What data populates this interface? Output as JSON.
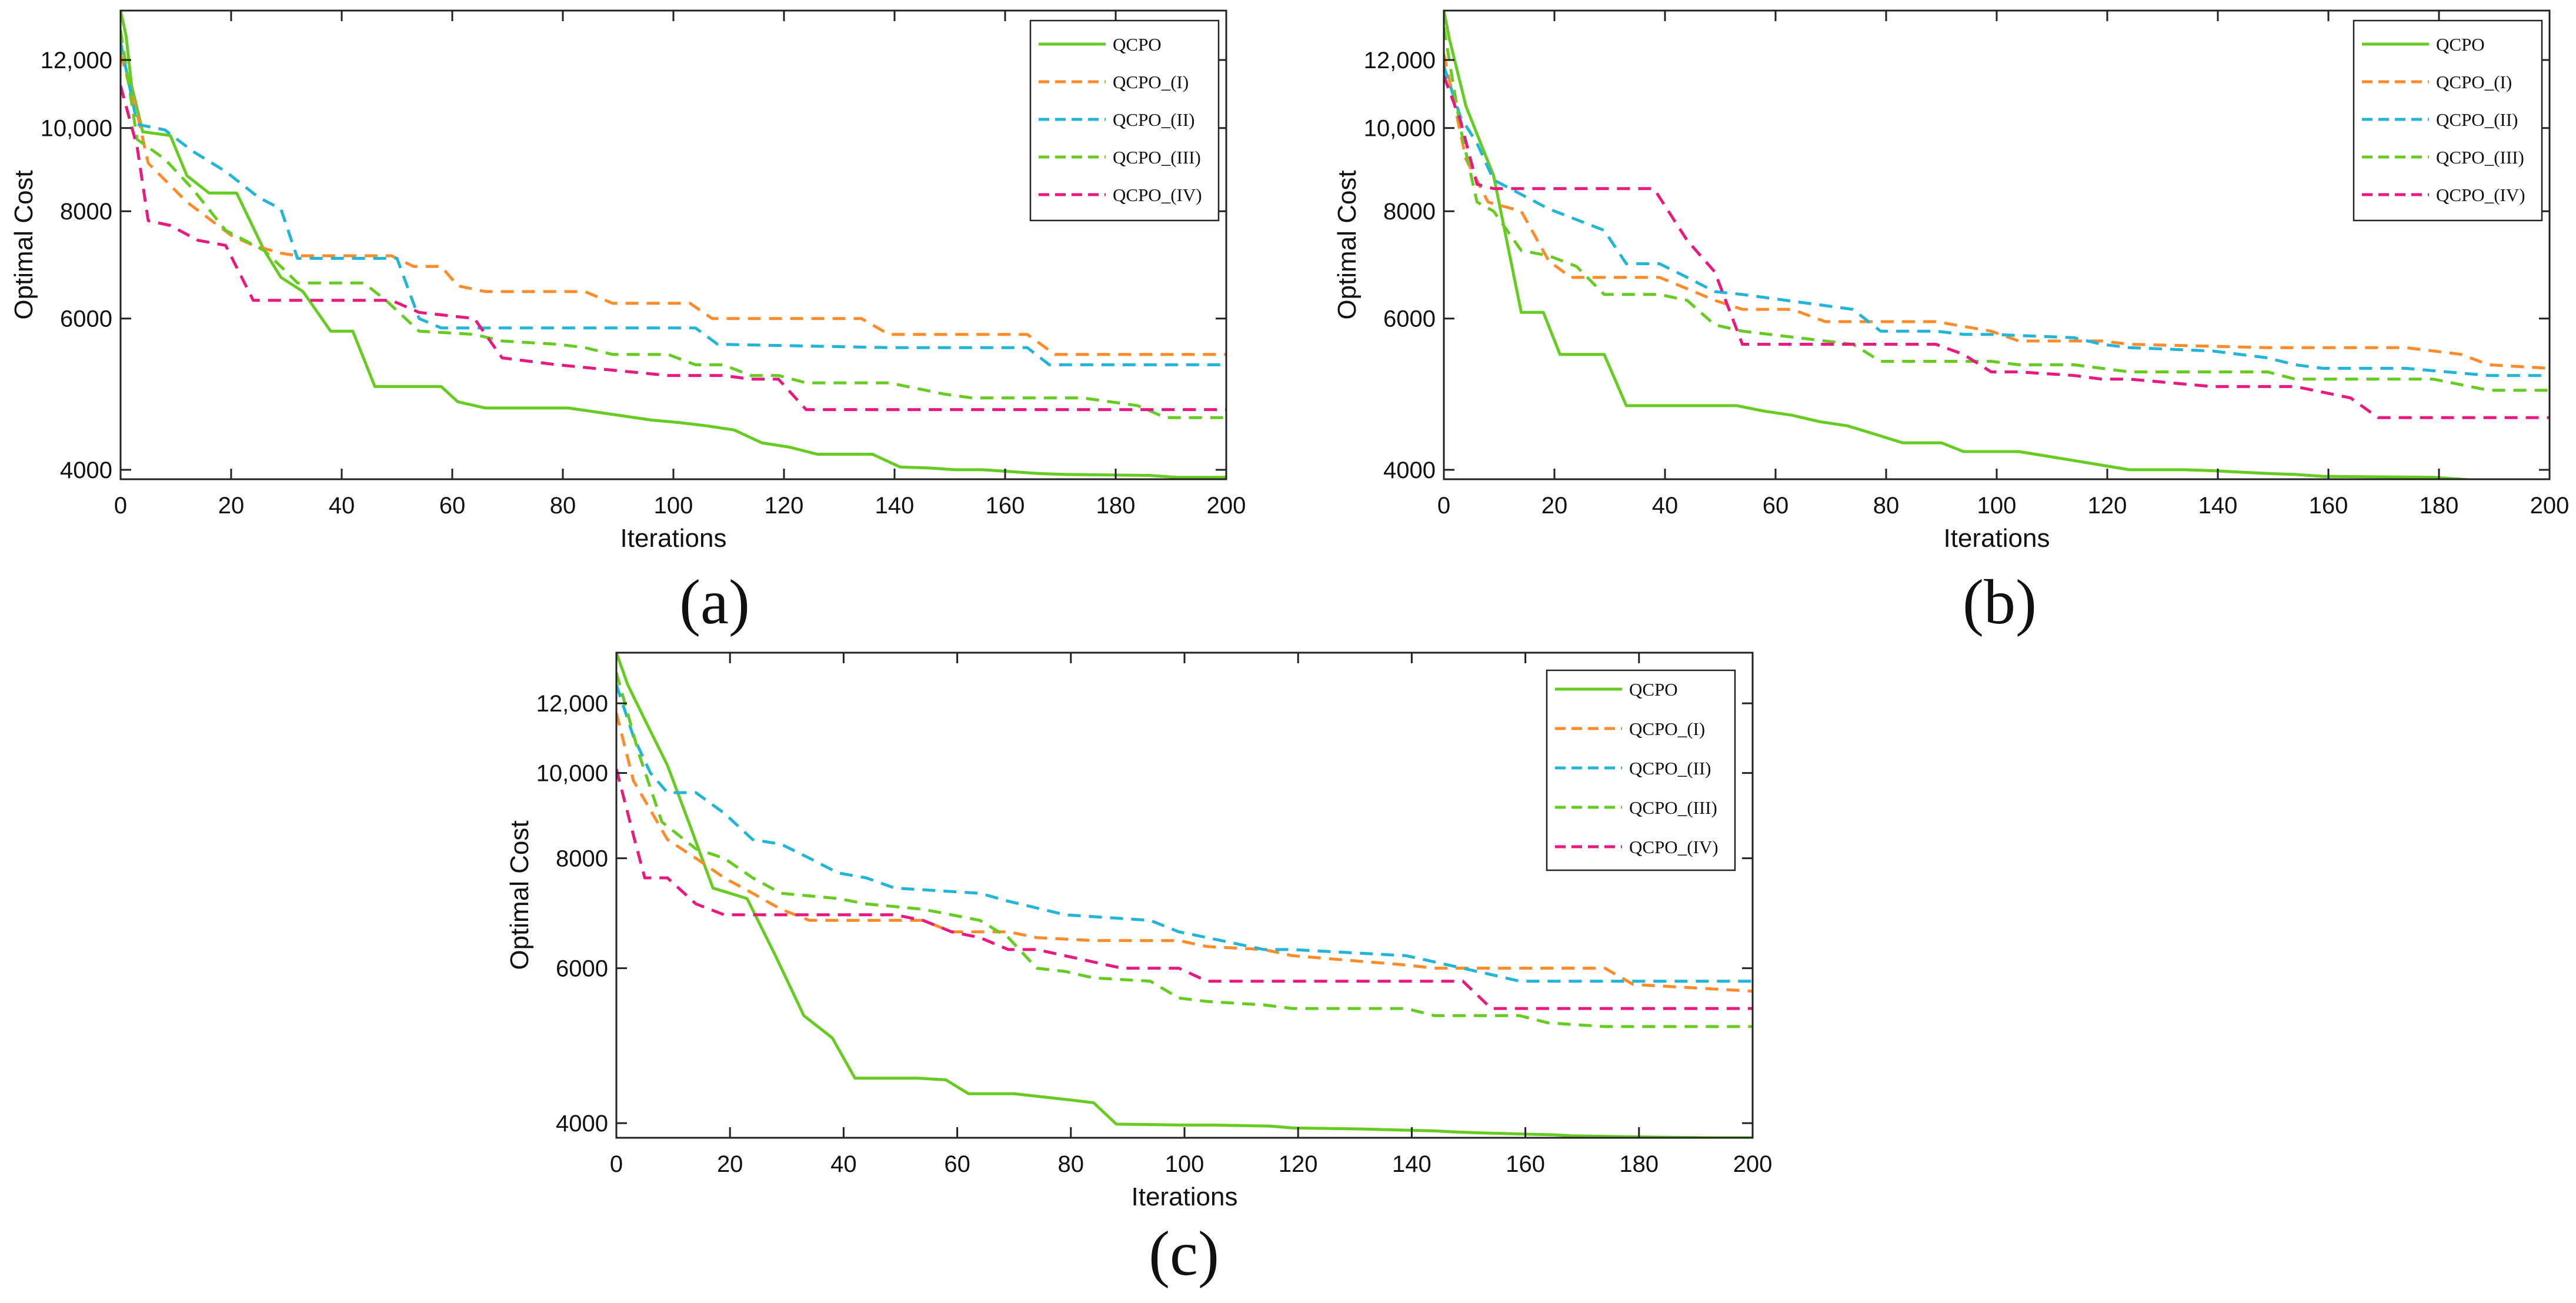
{
  "chart_data": [
    {
      "type": "line",
      "caption": "(a)",
      "xlabel": "Iterations",
      "ylabel": "Optimal Cost",
      "xlim": [
        0,
        200
      ],
      "ylim": [
        3900,
        13700
      ],
      "yscale": "log",
      "xticks": [
        0,
        20,
        40,
        60,
        80,
        100,
        120,
        140,
        160,
        180,
        200
      ],
      "yticks": [
        4000,
        6000,
        8000,
        10000,
        12000
      ],
      "ytick_labels": [
        "4000",
        "6000",
        "8000",
        "10,000",
        "12,000"
      ],
      "grid": false,
      "legend_position": "top-right",
      "series": [
        {
          "name": "QCPO",
          "color": "#66cc22",
          "dash": "solid",
          "x": [
            0,
            1,
            2,
            4,
            9,
            12,
            16,
            21,
            26,
            29,
            33,
            38,
            42,
            46,
            49,
            58,
            61,
            66,
            71,
            81,
            86,
            91,
            96,
            101,
            106,
            111,
            116,
            121,
            126,
            131,
            136,
            141,
            146,
            151,
            156,
            166,
            171,
            186,
            191,
            200
          ],
          "y": [
            13700,
            12800,
            11200,
            9900,
            9800,
            8800,
            8400,
            8400,
            7200,
            6700,
            6450,
            5800,
            5800,
            5000,
            5000,
            5000,
            4800,
            4720,
            4720,
            4720,
            4670,
            4620,
            4570,
            4540,
            4500,
            4450,
            4300,
            4250,
            4170,
            4170,
            4170,
            4030,
            4020,
            4000,
            4000,
            3960,
            3950,
            3940,
            3920,
            3920
          ]
        },
        {
          "name": "QCPO_(I)",
          "color": "#ff8c2a",
          "dash": "dashed",
          "x": [
            0,
            3,
            5,
            12,
            20,
            24,
            29,
            32,
            49,
            53,
            58,
            61,
            66,
            84,
            89,
            103,
            107,
            119,
            134,
            139,
            154,
            164,
            169,
            200
          ],
          "y": [
            12200,
            10400,
            9100,
            8200,
            7500,
            7300,
            7150,
            7100,
            7100,
            6900,
            6900,
            6550,
            6450,
            6450,
            6250,
            6250,
            6000,
            6000,
            6000,
            5750,
            5750,
            5750,
            5450,
            5450
          ]
        },
        {
          "name": "QCPO_(II)",
          "color": "#22b5d8",
          "dash": "dashed",
          "x": [
            0,
            3,
            8,
            13,
            19,
            25,
            29,
            32,
            50,
            54,
            58,
            64,
            99,
            104,
            108,
            139,
            159,
            164,
            168,
            200
          ],
          "y": [
            12600,
            10100,
            9950,
            9400,
            8900,
            8300,
            8050,
            7050,
            7050,
            6000,
            5850,
            5850,
            5850,
            5850,
            5600,
            5550,
            5550,
            5550,
            5300,
            5300
          ]
        },
        {
          "name": "QCPO_(III)",
          "color": "#66cc22",
          "dash": "dashed",
          "x": [
            0,
            3,
            8,
            13,
            19,
            26,
            30,
            32,
            44,
            48,
            54,
            64,
            69,
            79,
            84,
            89,
            99,
            104,
            109,
            114,
            119,
            124,
            139,
            149,
            154,
            164,
            174,
            184,
            189,
            200
          ],
          "y": [
            13000,
            9700,
            9200,
            8500,
            7600,
            7200,
            6800,
            6600,
            6600,
            6300,
            5800,
            5750,
            5650,
            5600,
            5550,
            5450,
            5450,
            5300,
            5300,
            5150,
            5150,
            5050,
            5050,
            4900,
            4850,
            4850,
            4850,
            4750,
            4600,
            4600
          ]
        },
        {
          "name": "QCPO_(IV)",
          "color": "#e8197f",
          "dash": "dashed",
          "x": [
            0,
            3,
            5,
            9,
            14,
            19,
            24,
            29,
            49,
            54,
            64,
            69,
            79,
            99,
            109,
            114,
            119,
            124,
            200
          ],
          "y": [
            11200,
            9500,
            7800,
            7700,
            7400,
            7300,
            6300,
            6300,
            6300,
            6100,
            6000,
            5400,
            5300,
            5150,
            5150,
            5100,
            5100,
            4700,
            4700
          ]
        }
      ]
    },
    {
      "type": "line",
      "caption": "(b)",
      "xlabel": "Iterations",
      "ylabel": "Optimal Cost",
      "xlim": [
        0,
        200
      ],
      "ylim": [
        3900,
        13700
      ],
      "yscale": "log",
      "xticks": [
        0,
        20,
        40,
        60,
        80,
        100,
        120,
        140,
        160,
        180,
        200
      ],
      "yticks": [
        4000,
        6000,
        8000,
        10000,
        12000
      ],
      "ytick_labels": [
        "4000",
        "6000",
        "8000",
        "10,000",
        "12,000"
      ],
      "grid": false,
      "legend_position": "top-right",
      "series": [
        {
          "name": "QCPO",
          "color": "#66cc22",
          "dash": "solid",
          "x": [
            0,
            1,
            4,
            9,
            14,
            18,
            21,
            29,
            33,
            53,
            58,
            63,
            68,
            73,
            78,
            83,
            90,
            94,
            99,
            104,
            109,
            114,
            119,
            124,
            134,
            139,
            149,
            154,
            159,
            179,
            189,
            200
          ],
          "y": [
            13700,
            12700,
            10600,
            8800,
            6100,
            6100,
            5450,
            5450,
            4750,
            4750,
            4680,
            4630,
            4550,
            4500,
            4400,
            4300,
            4300,
            4200,
            4200,
            4200,
            4150,
            4100,
            4050,
            4000,
            4000,
            3990,
            3960,
            3950,
            3930,
            3920,
            3880,
            3860
          ]
        },
        {
          "name": "QCPO_(I)",
          "color": "#ff8c2a",
          "dash": "dashed",
          "x": [
            0,
            4,
            8,
            14,
            19,
            23,
            39,
            44,
            49,
            54,
            63,
            69,
            89,
            99,
            104,
            119,
            124,
            149,
            154,
            174,
            184,
            189,
            200
          ],
          "y": [
            12200,
            9200,
            8200,
            8000,
            7000,
            6700,
            6700,
            6500,
            6300,
            6150,
            6150,
            5950,
            5950,
            5800,
            5650,
            5650,
            5600,
            5550,
            5550,
            5550,
            5450,
            5300,
            5250
          ]
        },
        {
          "name": "QCPO_(II)",
          "color": "#22b5d8",
          "dash": "dashed",
          "x": [
            0,
            3,
            6,
            9,
            19,
            29,
            33,
            39,
            44,
            49,
            54,
            74,
            79,
            89,
            94,
            99,
            114,
            119,
            124,
            139,
            149,
            154,
            159,
            174,
            189,
            200
          ],
          "y": [
            11800,
            10300,
            9600,
            8700,
            8050,
            7600,
            6950,
            6950,
            6700,
            6450,
            6400,
            6150,
            5800,
            5800,
            5750,
            5750,
            5700,
            5600,
            5550,
            5500,
            5400,
            5300,
            5250,
            5250,
            5150,
            5150
          ]
        },
        {
          "name": "QCPO_(III)",
          "color": "#66cc22",
          "dash": "dashed",
          "x": [
            0,
            3,
            6,
            9,
            14,
            19,
            24,
            29,
            39,
            44,
            49,
            54,
            74,
            79,
            99,
            104,
            114,
            119,
            124,
            149,
            154,
            159,
            179,
            189,
            200
          ],
          "y": [
            13100,
            10000,
            8200,
            8000,
            7200,
            7100,
            6900,
            6400,
            6400,
            6300,
            5900,
            5800,
            5600,
            5350,
            5350,
            5300,
            5300,
            5250,
            5200,
            5200,
            5100,
            5100,
            5100,
            4950,
            4950
          ]
        },
        {
          "name": "QCPO_(IV)",
          "color": "#e8197f",
          "dash": "dashed",
          "x": [
            0,
            3,
            6,
            9,
            19,
            29,
            38,
            44,
            49,
            54,
            69,
            89,
            94,
            99,
            104,
            114,
            119,
            124,
            139,
            154,
            164,
            169,
            200
          ],
          "y": [
            11500,
            10200,
            8600,
            8500,
            8500,
            8500,
            8500,
            7400,
            6800,
            5600,
            5600,
            5600,
            5450,
            5200,
            5200,
            5150,
            5100,
            5100,
            5000,
            5000,
            4850,
            4600,
            4600
          ]
        }
      ]
    },
    {
      "type": "line",
      "caption": "(c)",
      "xlabel": "Iterations",
      "ylabel": "Optimal Cost",
      "xlim": [
        0,
        200
      ],
      "ylim": [
        3850,
        13700
      ],
      "yscale": "log",
      "xticks": [
        0,
        20,
        40,
        60,
        80,
        100,
        120,
        140,
        160,
        180,
        200
      ],
      "yticks": [
        4000,
        6000,
        8000,
        10000,
        12000
      ],
      "ytick_labels": [
        "4000",
        "6000",
        "8000",
        "10,000",
        "12,000"
      ],
      "grid": false,
      "legend_position": "top-right",
      "series": [
        {
          "name": "QCPO",
          "color": "#66cc22",
          "dash": "solid",
          "x": [
            0,
            2,
            5,
            9,
            13,
            17,
            23,
            28,
            33,
            38,
            42,
            48,
            53,
            58,
            62,
            70,
            80,
            84,
            88,
            100,
            105,
            115,
            119,
            131,
            137,
            144,
            147,
            152,
            158,
            165,
            168,
            178,
            186,
            193,
            200
          ],
          "y": [
            13700,
            12600,
            11500,
            10200,
            8700,
            7400,
            7200,
            6200,
            5300,
            5000,
            4500,
            4500,
            4500,
            4480,
            4320,
            4320,
            4250,
            4220,
            3990,
            3980,
            3980,
            3970,
            3950,
            3940,
            3930,
            3920,
            3910,
            3900,
            3890,
            3880,
            3870,
            3860,
            3855,
            3850,
            3850
          ]
        },
        {
          "name": "QCPO_(I)",
          "color": "#ff8c2a",
          "dash": "dashed",
          "x": [
            0,
            3,
            9,
            14,
            19,
            24,
            29,
            34,
            54,
            59,
            69,
            74,
            84,
            99,
            104,
            114,
            119,
            139,
            144,
            174,
            179,
            200
          ],
          "y": [
            11700,
            9800,
            8400,
            8000,
            7600,
            7300,
            7000,
            6800,
            6800,
            6600,
            6600,
            6500,
            6450,
            6450,
            6350,
            6300,
            6200,
            6050,
            6000,
            6000,
            5750,
            5650
          ]
        },
        {
          "name": "QCPO_(II)",
          "color": "#22b5d8",
          "dash": "dashed",
          "x": [
            0,
            3,
            6,
            9,
            14,
            19,
            24,
            29,
            34,
            39,
            44,
            49,
            64,
            69,
            79,
            94,
            99,
            104,
            114,
            119,
            139,
            144,
            154,
            159,
            200
          ],
          "y": [
            12600,
            11000,
            10000,
            9500,
            9500,
            9000,
            8400,
            8300,
            8000,
            7700,
            7600,
            7400,
            7300,
            7150,
            6900,
            6800,
            6600,
            6500,
            6300,
            6300,
            6200,
            6100,
            5900,
            5800,
            5800
          ]
        },
        {
          "name": "QCPO_(III)",
          "color": "#66cc22",
          "dash": "dashed",
          "x": [
            0,
            4,
            8,
            14,
            19,
            24,
            29,
            34,
            39,
            44,
            54,
            59,
            64,
            69,
            74,
            79,
            84,
            94,
            99,
            104,
            114,
            119,
            139,
            144,
            159,
            164,
            174,
            200
          ],
          "y": [
            13000,
            10500,
            8800,
            8200,
            8000,
            7600,
            7300,
            7250,
            7200,
            7100,
            7000,
            6900,
            6800,
            6500,
            6000,
            5950,
            5850,
            5800,
            5550,
            5500,
            5450,
            5400,
            5400,
            5300,
            5300,
            5200,
            5150,
            5150
          ]
        },
        {
          "name": "QCPO_(IV)",
          "color": "#e8197f",
          "dash": "dashed",
          "x": [
            0,
            3,
            5,
            9,
            14,
            19,
            24,
            29,
            39,
            49,
            54,
            59,
            64,
            69,
            74,
            89,
            99,
            104,
            119,
            139,
            149,
            154,
            200
          ],
          "y": [
            10100,
            8500,
            7600,
            7600,
            7100,
            6900,
            6900,
            6900,
            6900,
            6900,
            6800,
            6600,
            6500,
            6300,
            6300,
            6000,
            6000,
            5800,
            5800,
            5800,
            5800,
            5400,
            5400
          ]
        }
      ]
    }
  ]
}
